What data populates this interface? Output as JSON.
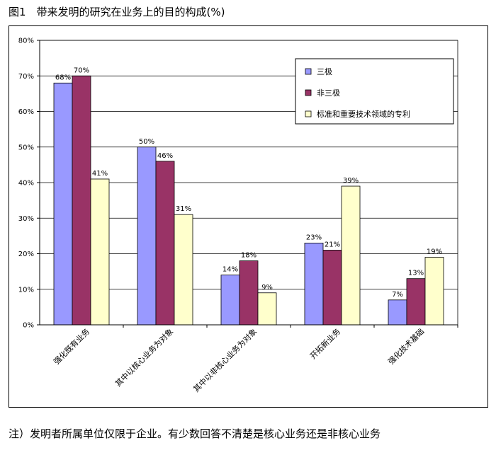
{
  "figure": {
    "title": "图1　带来发明的研究在业务上的目的构成(%)",
    "note": "注）发明者所属单位仅限于企业。有少数回答不清楚是核心业务还是非核心业务"
  },
  "colors": {
    "series_a": "#9999ff",
    "series_b": "#993366",
    "series_c": "#ffffcc",
    "grid": "#000000",
    "outline": "#000000"
  },
  "chart_data": {
    "type": "bar",
    "title": "",
    "xlabel": "",
    "ylabel": "",
    "categories": [
      "强化既有业务",
      "其中以核心业务为对象",
      "其中以非核心业务为对象",
      "开拓新业务",
      "强化技术基础"
    ],
    "series": [
      {
        "name": "三极",
        "values": [
          68,
          50,
          14,
          23,
          7
        ],
        "labels": [
          "68%",
          "50%",
          "14%",
          "23%",
          "7%"
        ]
      },
      {
        "name": "非三极",
        "values": [
          70,
          46,
          18,
          21,
          13
        ],
        "labels": [
          "70%",
          "46%",
          "18%",
          "21%",
          "13%"
        ]
      },
      {
        "name": "标准和重要技术领域的专利",
        "values": [
          41,
          31,
          9,
          39,
          19
        ],
        "labels": [
          "41%",
          "31%",
          "9%",
          "39%",
          "19%"
        ]
      }
    ],
    "yticks": [
      "0%",
      "10%",
      "20%",
      "30%",
      "40%",
      "50%",
      "60%",
      "70%",
      "80%"
    ],
    "ylim": [
      0,
      80
    ],
    "grid": true,
    "legend": "top-right"
  }
}
